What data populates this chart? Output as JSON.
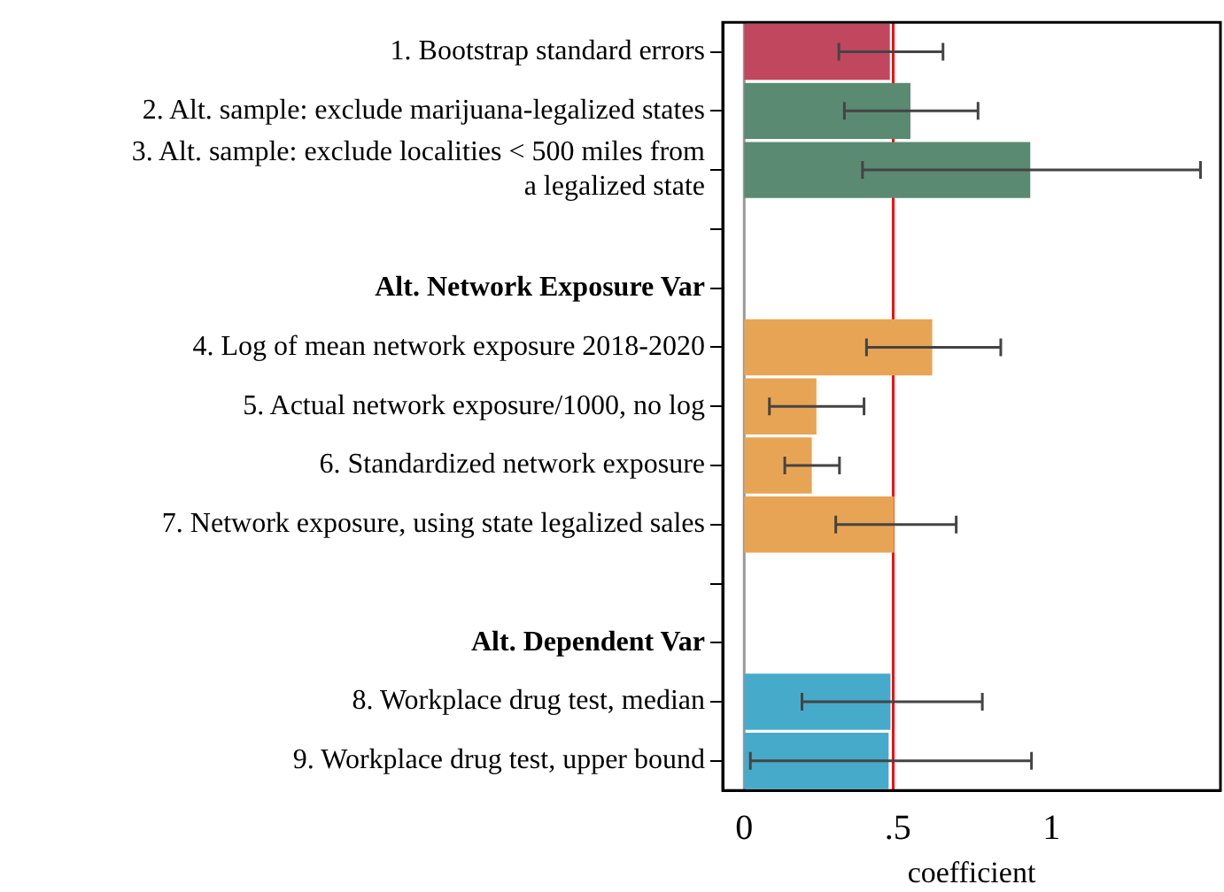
{
  "chart_data": {
    "type": "bar",
    "orientation": "horizontal",
    "xlabel": "coefficient",
    "categories": [
      "1. Bootstrap standard errors",
      "2. Alt. sample: exclude marijuana-legalized states",
      "3. Alt. sample: exclude localities < 500 miles from a legalized state",
      null,
      "Alt. Network Exposure Var",
      "4. Log of mean network exposure 2018-2020",
      "5. Actual network exposure/1000, no log",
      "6. Standardized network exposure",
      "7. Network exposure, using state legalized sales",
      null,
      "Alt. Dependent Var",
      "8. Workplace drug test, median",
      "9. Workplace drug test, upper bound"
    ],
    "values": [
      0.474,
      0.541,
      0.931,
      null,
      null,
      0.612,
      0.235,
      0.22,
      0.488,
      null,
      null,
      0.476,
      0.47
    ],
    "colors": [
      "#c0475e",
      "#5b8a72",
      "#5b8a72",
      null,
      null,
      "#e8a455",
      "#e8a455",
      "#e8a455",
      "#e8a455",
      null,
      null,
      "#46abcb",
      "#46abcb"
    ],
    "errors": [
      [
        0.308,
        0.647
      ],
      [
        0.326,
        0.761
      ],
      [
        0.385,
        1.485
      ],
      null,
      null,
      [
        0.398,
        0.835
      ],
      [
        0.082,
        0.39
      ],
      [
        0.132,
        0.31
      ],
      [
        0.298,
        0.69
      ],
      null,
      null,
      [
        0.188,
        0.775
      ],
      [
        0.02,
        0.935
      ]
    ],
    "xlim": [
      -0.07,
      1.55
    ],
    "xticks": [
      0,
      {
        "value": 0.5,
        "label": ".5"
      },
      1
    ],
    "ref_lines": [
      {
        "axis": "x",
        "value": 0,
        "color": "#999999"
      },
      {
        "axis": "x",
        "value": 0.485,
        "color": "#ff0000"
      }
    ],
    "grid": false,
    "legend": false
  }
}
